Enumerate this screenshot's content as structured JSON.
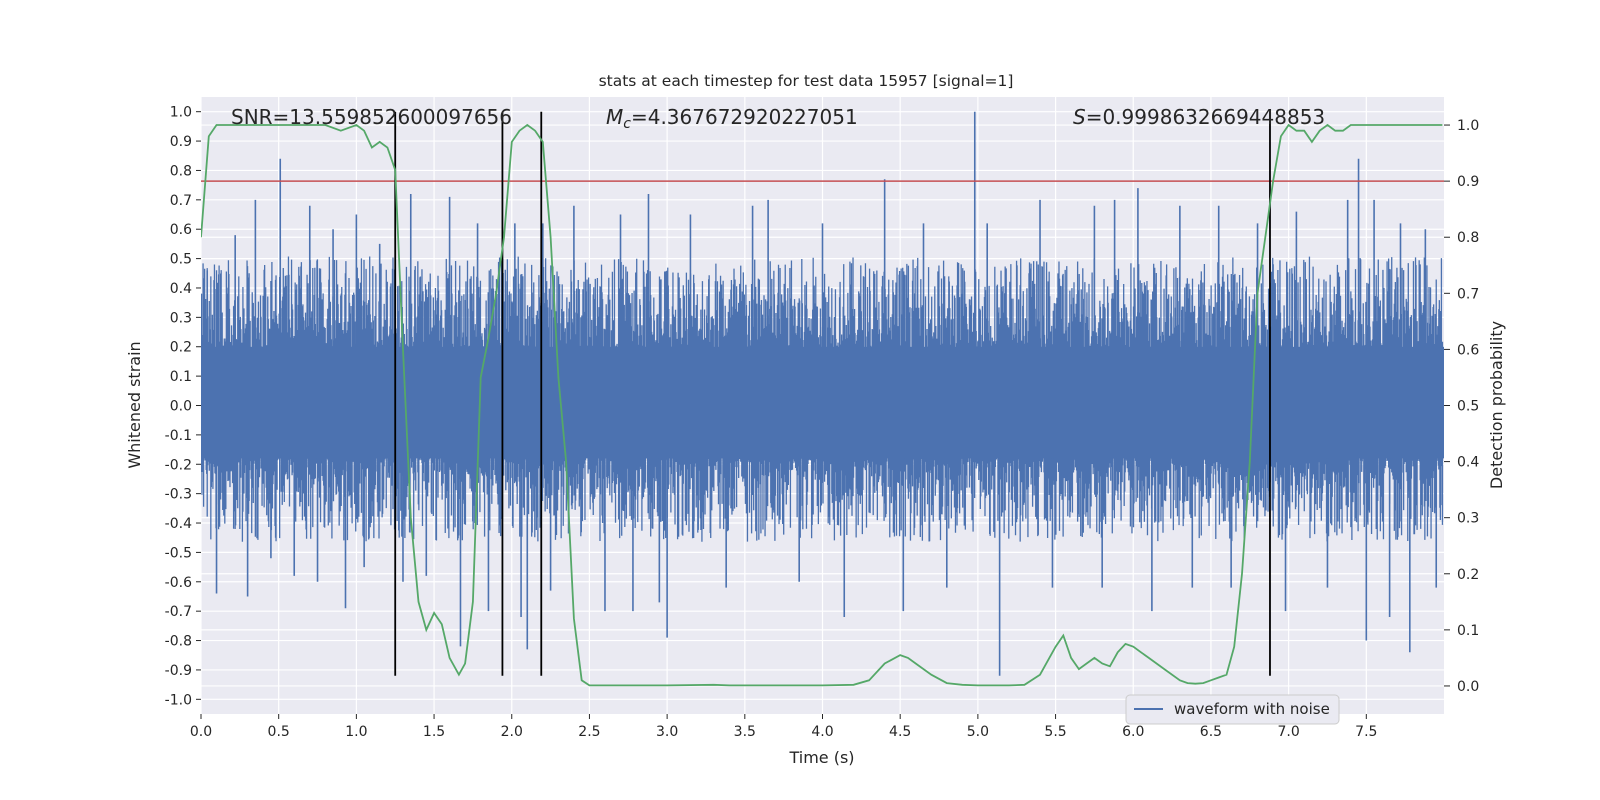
{
  "chart_data": {
    "type": "line",
    "title": "stats at each timestep for test data 15957 [signal=1]",
    "xlabel": "Time (s)",
    "ylabel_left": "Whitened strain",
    "ylabel_right": "Detection probability",
    "xlim": [
      0,
      8
    ],
    "ylim_left": [
      -1.05,
      1.05
    ],
    "ylim_right": [
      -0.05,
      1.05
    ],
    "x_ticks": [
      "0.0",
      "0.5",
      "1.0",
      "1.5",
      "2.0",
      "2.5",
      "3.0",
      "3.5",
      "4.0",
      "4.5",
      "5.0",
      "5.5",
      "6.0",
      "6.5",
      "7.0",
      "7.5"
    ],
    "y_left_ticks": [
      "-1.0",
      "-0.9",
      "-0.8",
      "-0.7",
      "-0.6",
      "-0.5",
      "-0.4",
      "-0.3",
      "-0.2",
      "-0.1",
      "0.0",
      "0.1",
      "0.2",
      "0.3",
      "0.4",
      "0.5",
      "0.6",
      "0.7",
      "0.8",
      "0.9",
      "1.0"
    ],
    "y_right_ticks": [
      "0.0",
      "0.1",
      "0.2",
      "0.3",
      "0.4",
      "0.5",
      "0.6",
      "0.7",
      "0.8",
      "0.9",
      "1.0"
    ],
    "grid": true,
    "annotations": {
      "snr": "SNR=13.559852600097656",
      "mc_symbol": "M",
      "mc_sub": "c",
      "mc_value": "=4.367672920227051",
      "s_symbol": "S",
      "s_value": "=0.9998632669448853"
    },
    "threshold": {
      "value": 0.9,
      "axis": "right",
      "color": "#c44e52"
    },
    "vertical_lines": {
      "x": [
        1.25,
        1.94,
        2.19,
        6.88
      ],
      "y_range_left": [
        -0.92,
        1.0
      ],
      "color": "#000000"
    },
    "series": [
      {
        "name": "waveform with noise",
        "axis": "left",
        "color": "#4c72b0",
        "band_envelope": {
          "t": [
            0,
            7.99
          ],
          "upper_typical": 0.35,
          "lower_typical": -0.32
        },
        "peaks": [
          {
            "x": 0.04,
            "y": 0.46
          },
          {
            "x": 0.1,
            "y": -0.64
          },
          {
            "x": 0.22,
            "y": 0.58
          },
          {
            "x": 0.3,
            "y": -0.65
          },
          {
            "x": 0.35,
            "y": 0.7
          },
          {
            "x": 0.45,
            "y": -0.52
          },
          {
            "x": 0.51,
            "y": 0.84
          },
          {
            "x": 0.6,
            "y": -0.58
          },
          {
            "x": 0.7,
            "y": 0.68
          },
          {
            "x": 0.75,
            "y": -0.6
          },
          {
            "x": 0.85,
            "y": 0.6
          },
          {
            "x": 0.93,
            "y": -0.69
          },
          {
            "x": 1.0,
            "y": 0.65
          },
          {
            "x": 1.05,
            "y": -0.55
          },
          {
            "x": 1.15,
            "y": 0.55
          },
          {
            "x": 1.3,
            "y": -0.6
          },
          {
            "x": 1.35,
            "y": 0.72
          },
          {
            "x": 1.45,
            "y": -0.58
          },
          {
            "x": 1.6,
            "y": 0.71
          },
          {
            "x": 1.67,
            "y": -0.82
          },
          {
            "x": 1.78,
            "y": 0.62
          },
          {
            "x": 1.85,
            "y": -0.7
          },
          {
            "x": 2.02,
            "y": 0.62
          },
          {
            "x": 2.06,
            "y": -0.72
          },
          {
            "x": 2.1,
            "y": -0.83
          },
          {
            "x": 2.2,
            "y": 0.62
          },
          {
            "x": 2.25,
            "y": -0.63
          },
          {
            "x": 2.4,
            "y": 0.68
          },
          {
            "x": 2.6,
            "y": -0.7
          },
          {
            "x": 2.7,
            "y": 0.65
          },
          {
            "x": 2.78,
            "y": -0.7
          },
          {
            "x": 2.88,
            "y": 0.72
          },
          {
            "x": 2.95,
            "y": -0.67
          },
          {
            "x": 3.0,
            "y": -0.79
          },
          {
            "x": 3.15,
            "y": 0.65
          },
          {
            "x": 3.38,
            "y": -0.62
          },
          {
            "x": 3.55,
            "y": 0.68
          },
          {
            "x": 3.65,
            "y": 0.7
          },
          {
            "x": 3.85,
            "y": -0.6
          },
          {
            "x": 4.0,
            "y": 0.62
          },
          {
            "x": 4.14,
            "y": -0.72
          },
          {
            "x": 4.4,
            "y": 0.77
          },
          {
            "x": 4.52,
            "y": -0.7
          },
          {
            "x": 4.65,
            "y": 0.62
          },
          {
            "x": 4.8,
            "y": -0.62
          },
          {
            "x": 4.98,
            "y": 1.0
          },
          {
            "x": 5.06,
            "y": 0.62
          },
          {
            "x": 5.14,
            "y": -0.92
          },
          {
            "x": 5.4,
            "y": 0.7
          },
          {
            "x": 5.48,
            "y": -0.62
          },
          {
            "x": 5.75,
            "y": 0.68
          },
          {
            "x": 5.8,
            "y": -0.62
          },
          {
            "x": 5.88,
            "y": 0.7
          },
          {
            "x": 6.03,
            "y": 0.74
          },
          {
            "x": 6.12,
            "y": -0.7
          },
          {
            "x": 6.3,
            "y": 0.68
          },
          {
            "x": 6.38,
            "y": -0.62
          },
          {
            "x": 6.55,
            "y": 0.68
          },
          {
            "x": 6.63,
            "y": -0.62
          },
          {
            "x": 6.8,
            "y": 0.62
          },
          {
            "x": 6.98,
            "y": -0.7
          },
          {
            "x": 7.05,
            "y": 0.66
          },
          {
            "x": 7.25,
            "y": -0.62
          },
          {
            "x": 7.38,
            "y": 0.7
          },
          {
            "x": 7.45,
            "y": 0.84
          },
          {
            "x": 7.5,
            "y": -0.8
          },
          {
            "x": 7.55,
            "y": 0.7
          },
          {
            "x": 7.65,
            "y": -0.72
          },
          {
            "x": 7.72,
            "y": 0.62
          },
          {
            "x": 7.78,
            "y": -0.84
          },
          {
            "x": 7.88,
            "y": 0.6
          },
          {
            "x": 7.95,
            "y": -0.62
          }
        ]
      },
      {
        "name": "",
        "axis": "right",
        "color": "#55a868",
        "x": [
          0.0,
          0.05,
          0.1,
          0.15,
          0.3,
          0.5,
          0.8,
          0.9,
          1.0,
          1.05,
          1.1,
          1.15,
          1.2,
          1.25,
          1.3,
          1.35,
          1.4,
          1.45,
          1.5,
          1.55,
          1.6,
          1.66,
          1.7,
          1.75,
          1.8,
          1.85,
          1.9,
          1.95,
          2.0,
          2.05,
          2.1,
          2.15,
          2.2,
          2.25,
          2.3,
          2.35,
          2.4,
          2.45,
          2.5,
          3.0,
          3.3,
          3.4,
          4.0,
          4.2,
          4.3,
          4.4,
          4.5,
          4.55,
          4.6,
          4.7,
          4.8,
          4.9,
          5.0,
          5.1,
          5.2,
          5.3,
          5.4,
          5.5,
          5.55,
          5.6,
          5.65,
          5.7,
          5.75,
          5.8,
          5.85,
          5.9,
          5.95,
          6.0,
          6.05,
          6.1,
          6.2,
          6.3,
          6.35,
          6.4,
          6.45,
          6.5,
          6.55,
          6.6,
          6.65,
          6.7,
          6.75,
          6.8,
          6.85,
          6.9,
          6.95,
          7.0,
          7.05,
          7.1,
          7.15,
          7.2,
          7.25,
          7.3,
          7.35,
          7.4,
          7.5,
          7.6,
          7.7,
          7.8,
          7.9,
          7.99
        ],
        "values": [
          0.8,
          0.98,
          1.0,
          1.0,
          1.0,
          1.0,
          1.0,
          0.99,
          1.0,
          0.99,
          0.96,
          0.97,
          0.96,
          0.92,
          0.6,
          0.3,
          0.15,
          0.1,
          0.13,
          0.11,
          0.05,
          0.02,
          0.04,
          0.15,
          0.55,
          0.62,
          0.7,
          0.8,
          0.97,
          0.99,
          1.0,
          0.99,
          0.97,
          0.8,
          0.55,
          0.4,
          0.12,
          0.01,
          0.001,
          0.001,
          0.002,
          0.001,
          0.001,
          0.002,
          0.01,
          0.04,
          0.055,
          0.05,
          0.04,
          0.02,
          0.005,
          0.002,
          0.001,
          0.001,
          0.001,
          0.002,
          0.02,
          0.07,
          0.09,
          0.05,
          0.03,
          0.04,
          0.05,
          0.04,
          0.035,
          0.06,
          0.075,
          0.07,
          0.06,
          0.05,
          0.03,
          0.01,
          0.005,
          0.004,
          0.005,
          0.01,
          0.015,
          0.02,
          0.07,
          0.2,
          0.4,
          0.7,
          0.8,
          0.9,
          0.98,
          1.0,
          0.99,
          0.99,
          0.97,
          0.99,
          1.0,
          0.99,
          0.99,
          1.0,
          1.0,
          1.0,
          1.0,
          1.0,
          1.0,
          1.0
        ]
      }
    ],
    "legend": {
      "entries": [
        "waveform with noise"
      ],
      "placement": "bottom-right"
    }
  }
}
